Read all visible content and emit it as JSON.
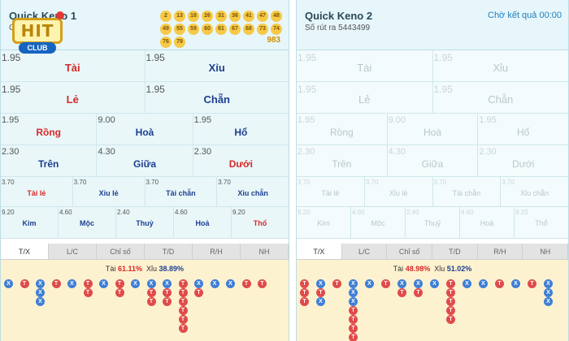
{
  "colors": {
    "accent": "#1f7fbf",
    "tai": "#e04b4b",
    "xiu": "#3f7fd6",
    "ball": "#f7c948"
  },
  "logo": {
    "text": "HIT",
    "club": "CLUB"
  },
  "panel1": {
    "title": "Quick Keno 1",
    "subtitle": "Ch",
    "balls": [
      "2",
      "13",
      "18",
      "26",
      "31",
      "36",
      "41",
      "47",
      "48",
      "49",
      "55",
      "59",
      "60",
      "61",
      "67",
      "68",
      "73",
      "74",
      "76",
      "79"
    ],
    "total": "983",
    "bets": {
      "r1": [
        {
          "odd": "1.95",
          "label": "Tài",
          "color": "red"
        },
        {
          "odd": "1.95",
          "label": "Xỉu",
          "color": "blue"
        }
      ],
      "r2": [
        {
          "odd": "1.95",
          "label": "Lẻ",
          "color": "red"
        },
        {
          "odd": "1.95",
          "label": "Chẵn",
          "color": "blue"
        }
      ],
      "r3": [
        {
          "odd": "1.95",
          "label": "Rồng",
          "color": "red"
        },
        {
          "odd": "9.00",
          "label": "Hoà",
          "color": "blue"
        },
        {
          "odd": "1.95",
          "label": "Hổ",
          "color": "blue"
        }
      ],
      "r4": [
        {
          "odd": "2.30",
          "label": "Trên",
          "color": "blue"
        },
        {
          "odd": "4.30",
          "label": "Giữa",
          "color": "blue"
        },
        {
          "odd": "2.30",
          "label": "Dưới",
          "color": "red"
        }
      ],
      "r5": [
        {
          "odd": "3.70",
          "label": "Tài lẻ",
          "color": "red"
        },
        {
          "odd": "3.70",
          "label": "Xỉu lẻ",
          "color": "blue"
        },
        {
          "odd": "3.70",
          "label": "Tài chẵn",
          "color": "blue"
        },
        {
          "odd": "3.70",
          "label": "Xỉu chẵn",
          "color": "blue"
        }
      ],
      "r6": [
        {
          "odd": "9.20",
          "label": "Kim",
          "color": "blue"
        },
        {
          "odd": "4.60",
          "label": "Mộc",
          "color": "blue"
        },
        {
          "odd": "2.40",
          "label": "Thuỷ",
          "color": "blue"
        },
        {
          "odd": "4.60",
          "label": "Hoả",
          "color": "blue"
        },
        {
          "odd": "9.20",
          "label": "Thổ",
          "color": "red"
        }
      ]
    },
    "stats": {
      "tai_label": "Tài",
      "tai_pct": "61.11%",
      "xiu_label": "Xỉu",
      "xiu_pct": "38.89%"
    },
    "road": [
      [
        "X"
      ],
      [
        "T"
      ],
      [
        "X",
        "X",
        "X"
      ],
      [
        "T"
      ],
      [
        "X"
      ],
      [
        "T",
        "T"
      ],
      [
        "X"
      ],
      [
        "T",
        "T"
      ],
      [
        "X"
      ],
      [
        "X",
        "T",
        "T"
      ],
      [
        "X",
        "T",
        "T"
      ],
      [
        "T",
        "T",
        "T",
        "T",
        "T",
        "T"
      ],
      [
        "X",
        "T"
      ],
      [
        "X"
      ],
      [
        "X"
      ],
      [
        "T"
      ],
      [
        "T"
      ]
    ]
  },
  "panel2": {
    "title": "Quick Keno 2",
    "subtitle": "Số rút ra 5443499",
    "status": "Chờ kết quả 00:00",
    "bets": {
      "r1": [
        {
          "odd": "1.95",
          "label": "Tài"
        },
        {
          "odd": "1.95",
          "label": "Xỉu"
        }
      ],
      "r2": [
        {
          "odd": "1.95",
          "label": "Lẻ"
        },
        {
          "odd": "1.95",
          "label": "Chẵn"
        }
      ],
      "r3": [
        {
          "odd": "1.95",
          "label": "Rồng"
        },
        {
          "odd": "9.00",
          "label": "Hoà"
        },
        {
          "odd": "1.95",
          "label": "Hổ"
        }
      ],
      "r4": [
        {
          "odd": "2.30",
          "label": "Trên"
        },
        {
          "odd": "4.30",
          "label": "Giữa"
        },
        {
          "odd": "2.30",
          "label": "Dưới"
        }
      ],
      "r5": [
        {
          "odd": "3.70",
          "label": "Tài lẻ"
        },
        {
          "odd": "3.70",
          "label": "Xỉu lẻ"
        },
        {
          "odd": "3.70",
          "label": "Tài chẵn"
        },
        {
          "odd": "3.70",
          "label": "Xỉu chẵn"
        }
      ],
      "r6": [
        {
          "odd": "9.20",
          "label": "Kim"
        },
        {
          "odd": "4.60",
          "label": "Mộc"
        },
        {
          "odd": "2.40",
          "label": "Thuỷ"
        },
        {
          "odd": "4.60",
          "label": "Hoả"
        },
        {
          "odd": "9.20",
          "label": "Thổ"
        }
      ]
    },
    "stats": {
      "tai_label": "Tài",
      "tai_pct": "48.98%",
      "xiu_label": "Xỉu",
      "xiu_pct": "51.02%"
    },
    "road": [
      [
        "T",
        "T",
        "T"
      ],
      [
        "X",
        "T",
        "X"
      ],
      [
        "T"
      ],
      [
        "X",
        "X",
        "X",
        "T",
        "T",
        "T",
        "T"
      ],
      [
        "X"
      ],
      [
        "T"
      ],
      [
        "X",
        "T"
      ],
      [
        "X",
        "T"
      ],
      [
        "X"
      ],
      [
        "T",
        "T",
        "T",
        "T",
        "T"
      ],
      [
        "X"
      ],
      [
        "X"
      ],
      [
        "T"
      ],
      [
        "X"
      ],
      [
        "T"
      ],
      [
        "X",
        "X",
        "X"
      ]
    ]
  },
  "tabs": [
    "T/X",
    "L/C",
    "Chỉ số",
    "T/D",
    "R/H",
    "NH"
  ],
  "active_tab": 0
}
